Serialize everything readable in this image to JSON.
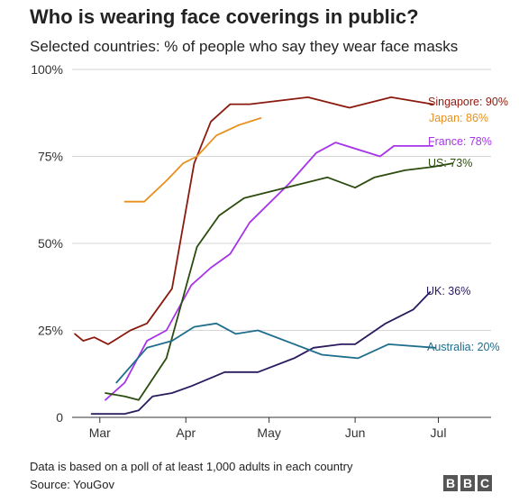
{
  "title": "Who is wearing face coverings in public?",
  "subtitle": "Selected countries: % of people who say they wear face masks",
  "note": "Data is based on a poll of at least 1,000 adults in each country",
  "source": "Source: YouGov",
  "logo": [
    "B",
    "B",
    "C"
  ],
  "chart_data": {
    "type": "line",
    "title": "Who is wearing face coverings in public?",
    "subtitle": "Selected countries: % of people who say they wear face masks",
    "xlabel": "",
    "ylabel": "",
    "xlim": [
      "2020-02-20",
      "2020-07-20"
    ],
    "ylim": [
      0,
      100
    ],
    "yticks": [
      0,
      25,
      50,
      75,
      100
    ],
    "ytick_labels": [
      "0",
      "25%",
      "50%",
      "75%",
      "100%"
    ],
    "xticks": [
      "2020-03-01",
      "2020-04-01",
      "2020-05-01",
      "2020-06-01",
      "2020-07-01"
    ],
    "xtick_labels": [
      "Mar",
      "Apr",
      "May",
      "Jun",
      "Jul"
    ],
    "grid": "horizontal",
    "legend": "direct labels at line ends",
    "series": [
      {
        "name": "Singapore",
        "label": "Singapore: 90%",
        "color": "#8b1a0e",
        "points": [
          [
            "2020-02-21",
            24
          ],
          [
            "2020-02-24",
            22
          ],
          [
            "2020-02-28",
            23
          ],
          [
            "2020-03-04",
            21
          ],
          [
            "2020-03-12",
            25
          ],
          [
            "2020-03-18",
            27
          ],
          [
            "2020-03-27",
            37
          ],
          [
            "2020-04-04",
            73
          ],
          [
            "2020-04-10",
            85
          ],
          [
            "2020-04-17",
            90
          ],
          [
            "2020-04-24",
            90
          ],
          [
            "2020-05-15",
            92
          ],
          [
            "2020-05-30",
            89
          ],
          [
            "2020-06-14",
            92
          ],
          [
            "2020-06-29",
            90
          ]
        ]
      },
      {
        "name": "Japan",
        "label": "Japan: 86%",
        "color": "#e8901e",
        "points": [
          [
            "2020-03-10",
            62
          ],
          [
            "2020-03-17",
            62
          ],
          [
            "2020-03-25",
            68
          ],
          [
            "2020-03-31",
            73
          ],
          [
            "2020-04-05",
            75
          ],
          [
            "2020-04-12",
            81
          ],
          [
            "2020-04-20",
            84
          ],
          [
            "2020-04-28",
            86
          ]
        ]
      },
      {
        "name": "France",
        "label": "France: 78%",
        "color": "#a634e8",
        "points": [
          [
            "2020-03-03",
            5
          ],
          [
            "2020-03-10",
            10
          ],
          [
            "2020-03-18",
            22
          ],
          [
            "2020-03-25",
            25
          ],
          [
            "2020-04-03",
            38
          ],
          [
            "2020-04-10",
            43
          ],
          [
            "2020-04-17",
            47
          ],
          [
            "2020-04-24",
            56
          ],
          [
            "2020-05-08",
            67
          ],
          [
            "2020-05-18",
            76
          ],
          [
            "2020-05-25",
            79
          ],
          [
            "2020-06-10",
            75
          ],
          [
            "2020-06-15",
            78
          ],
          [
            "2020-06-29",
            78
          ]
        ]
      },
      {
        "name": "US",
        "label": "US: 73%",
        "color": "#2b4c0e",
        "points": [
          [
            "2020-03-03",
            7
          ],
          [
            "2020-03-10",
            6
          ],
          [
            "2020-03-15",
            5
          ],
          [
            "2020-03-25",
            17
          ],
          [
            "2020-04-05",
            49
          ],
          [
            "2020-04-13",
            58
          ],
          [
            "2020-04-22",
            63
          ],
          [
            "2020-05-22",
            69
          ],
          [
            "2020-06-01",
            66
          ],
          [
            "2020-06-08",
            69
          ],
          [
            "2020-06-19",
            71
          ],
          [
            "2020-06-29",
            72
          ],
          [
            "2020-07-06",
            73
          ]
        ]
      },
      {
        "name": "UK",
        "label": "UK: 36%",
        "color": "#2a1a5e",
        "points": [
          [
            "2020-02-27",
            1
          ],
          [
            "2020-03-05",
            1
          ],
          [
            "2020-03-10",
            1
          ],
          [
            "2020-03-15",
            2
          ],
          [
            "2020-03-20",
            6
          ],
          [
            "2020-03-27",
            7
          ],
          [
            "2020-04-03",
            9
          ],
          [
            "2020-04-15",
            13
          ],
          [
            "2020-04-27",
            13
          ],
          [
            "2020-05-10",
            17
          ],
          [
            "2020-05-17",
            20
          ],
          [
            "2020-05-27",
            21
          ],
          [
            "2020-06-01",
            21
          ],
          [
            "2020-06-12",
            27
          ],
          [
            "2020-06-22",
            31
          ],
          [
            "2020-06-28",
            36
          ]
        ]
      },
      {
        "name": "Australia",
        "label": "Australia: 20%",
        "color": "#1f6e8c",
        "points": [
          [
            "2020-03-07",
            10
          ],
          [
            "2020-03-18",
            20
          ],
          [
            "2020-03-27",
            22
          ],
          [
            "2020-04-04",
            26
          ],
          [
            "2020-04-12",
            27
          ],
          [
            "2020-04-19",
            24
          ],
          [
            "2020-04-27",
            25
          ],
          [
            "2020-05-20",
            18
          ],
          [
            "2020-06-02",
            17
          ],
          [
            "2020-06-13",
            21
          ],
          [
            "2020-06-30",
            20
          ]
        ]
      }
    ]
  }
}
